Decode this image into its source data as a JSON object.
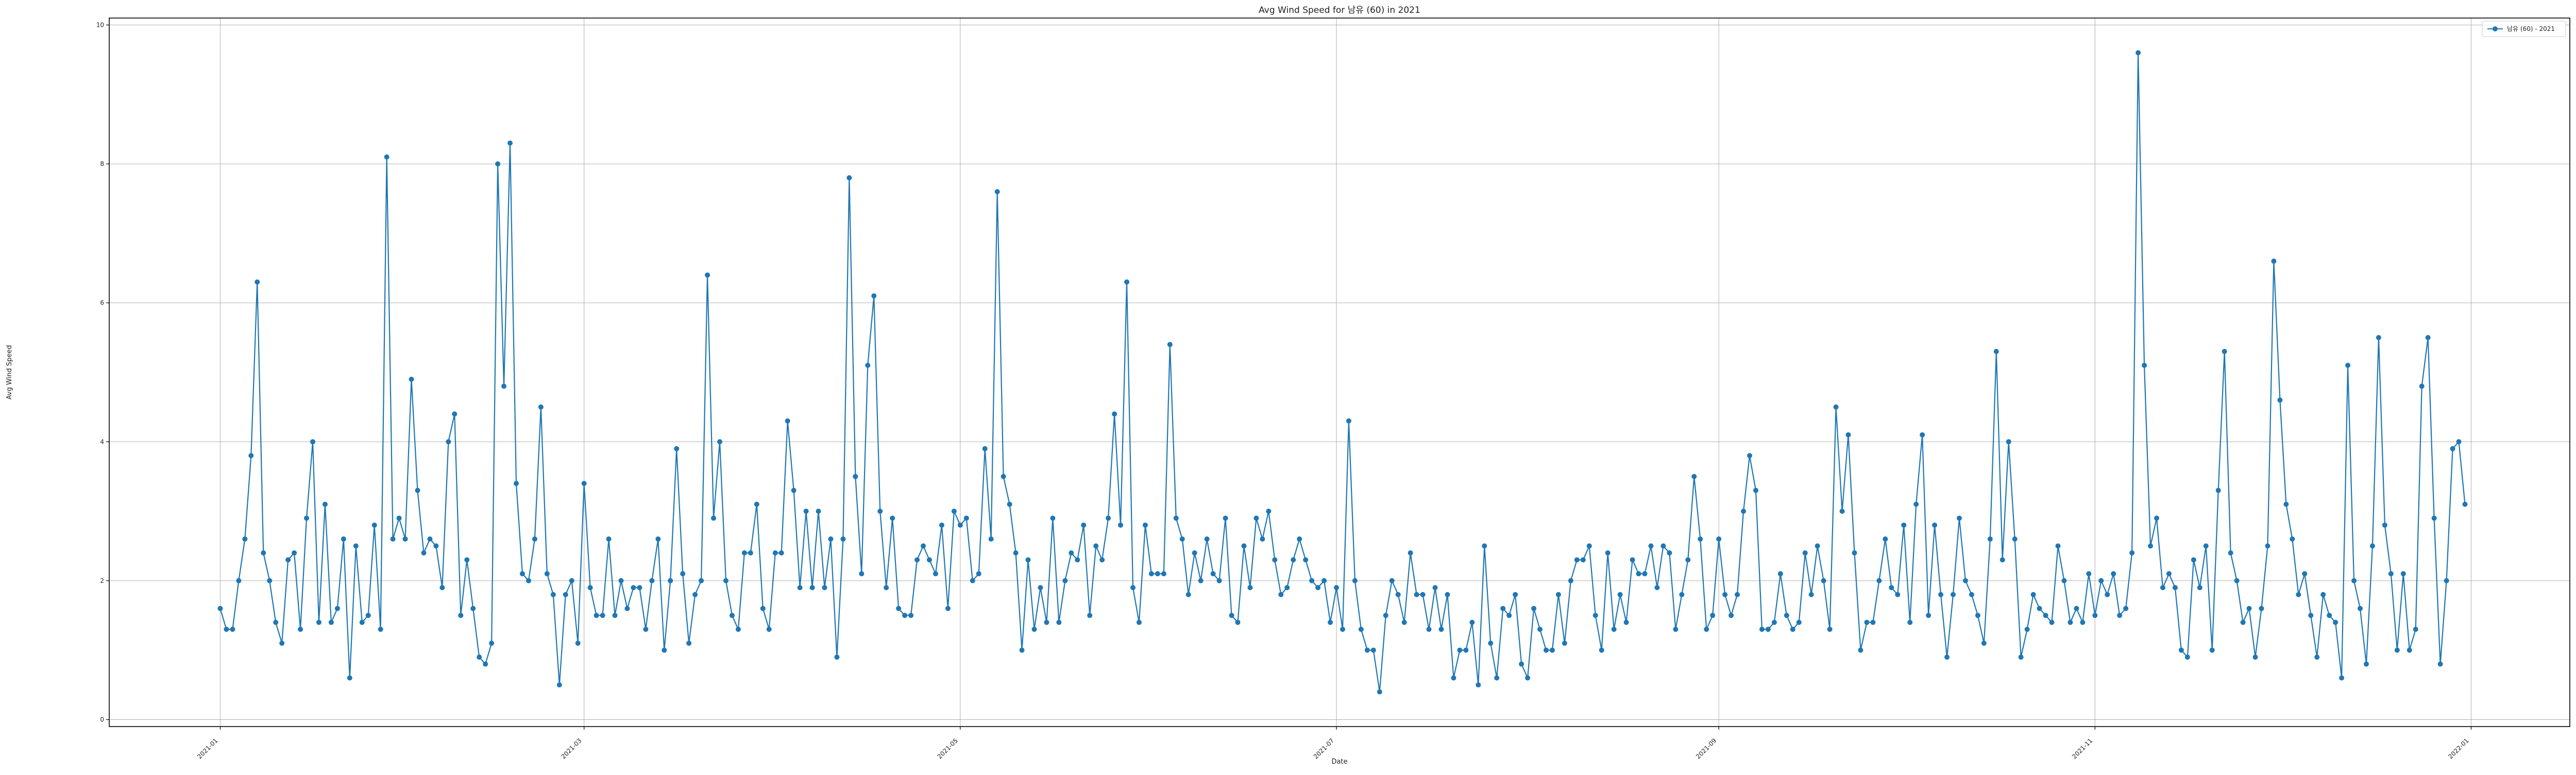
{
  "chart_data": {
    "type": "line",
    "title": "Avg Wind Speed for 남유 (60) in 2021",
    "xlabel": "Date",
    "ylabel": "Avg Wind Speed",
    "x_start": "2021-01-01",
    "x_end": "2021-12-31",
    "xlim": [
      "2020-12-14",
      "2022-01-17"
    ],
    "ylim": [
      -0.1,
      10.1
    ],
    "grid": true,
    "legend_position": "top-right",
    "x_ticks": [
      "2021-01",
      "2021-03",
      "2021-05",
      "2021-07",
      "2021-09",
      "2021-11",
      "2022-01"
    ],
    "y_ticks": [
      0,
      2,
      4,
      6,
      8,
      10
    ],
    "colors": {
      "series": "#1f77b4",
      "grid": "#b0b0b0",
      "axis": "#000000"
    },
    "series": [
      {
        "name": "남유 (60) - 2021",
        "marker": "circle",
        "values": [
          1.6,
          1.3,
          1.3,
          2.0,
          2.6,
          3.8,
          6.3,
          2.4,
          2.0,
          1.4,
          1.1,
          2.3,
          2.4,
          1.3,
          2.9,
          4.0,
          1.4,
          3.1,
          1.4,
          1.6,
          2.6,
          0.6,
          2.5,
          1.4,
          1.5,
          2.8,
          1.3,
          8.1,
          2.6,
          2.9,
          2.6,
          4.9,
          3.3,
          2.4,
          2.6,
          2.5,
          1.9,
          4.0,
          4.4,
          1.5,
          2.3,
          1.6,
          0.9,
          0.8,
          1.1,
          8.0,
          4.8,
          8.3,
          3.4,
          2.1,
          2.0,
          2.6,
          4.5,
          2.1,
          1.8,
          0.5,
          1.8,
          2.0,
          1.1,
          3.4,
          1.9,
          1.5,
          1.5,
          2.6,
          1.5,
          2.0,
          1.6,
          1.9,
          1.9,
          1.3,
          2.0,
          2.6,
          1.0,
          2.0,
          3.9,
          2.1,
          1.1,
          1.8,
          2.0,
          6.4,
          2.9,
          4.0,
          2.0,
          1.5,
          1.3,
          2.4,
          2.4,
          3.1,
          1.6,
          1.3,
          2.4,
          2.4,
          4.3,
          3.3,
          1.9,
          3.0,
          1.9,
          3.0,
          1.9,
          2.6,
          0.9,
          2.6,
          7.8,
          3.5,
          2.1,
          5.1,
          6.1,
          3.0,
          1.9,
          2.9,
          1.6,
          1.5,
          1.5,
          2.3,
          2.5,
          2.3,
          2.1,
          2.8,
          1.6,
          3.0,
          2.8,
          2.9,
          2.0,
          2.1,
          3.9,
          2.6,
          7.6,
          3.5,
          3.1,
          2.4,
          1.0,
          2.3,
          1.3,
          1.9,
          1.4,
          2.9,
          1.4,
          2.0,
          2.4,
          2.3,
          2.8,
          1.5,
          2.5,
          2.3,
          2.9,
          4.4,
          2.8,
          6.3,
          1.9,
          1.4,
          2.8,
          2.1,
          2.1,
          2.1,
          5.4,
          2.9,
          2.6,
          1.8,
          2.4,
          2.0,
          2.6,
          2.1,
          2.0,
          2.9,
          1.5,
          1.4,
          2.5,
          1.9,
          2.9,
          2.6,
          3.0,
          2.3,
          1.8,
          1.9,
          2.3,
          2.6,
          2.3,
          2.0,
          1.9,
          2.0,
          1.4,
          1.9,
          1.3,
          4.3,
          2.0,
          1.3,
          1.0,
          1.0,
          0.4,
          1.5,
          2.0,
          1.8,
          1.4,
          2.4,
          1.8,
          1.8,
          1.3,
          1.9,
          1.3,
          1.8,
          0.6,
          1.0,
          1.0,
          1.4,
          0.5,
          2.5,
          1.1,
          0.6,
          1.6,
          1.5,
          1.8,
          0.8,
          0.6,
          1.6,
          1.3,
          1.0,
          1.0,
          1.8,
          1.1,
          2.0,
          2.3,
          2.3,
          2.5,
          1.5,
          1.0,
          2.4,
          1.3,
          1.8,
          1.4,
          2.3,
          2.1,
          2.1,
          2.5,
          1.9,
          2.5,
          2.4,
          1.3,
          1.8,
          2.3,
          3.5,
          2.6,
          1.3,
          1.5,
          2.6,
          1.8,
          1.5,
          1.8,
          3.0,
          3.8,
          3.3,
          1.3,
          1.3,
          1.4,
          2.1,
          1.5,
          1.3,
          1.4,
          2.4,
          1.8,
          2.5,
          2.0,
          1.3,
          4.5,
          3.0,
          4.1,
          2.4,
          1.0,
          1.4,
          1.4,
          2.0,
          2.6,
          1.9,
          1.8,
          2.8,
          1.4,
          3.1,
          4.1,
          1.5,
          2.8,
          1.8,
          0.9,
          1.8,
          2.9,
          2.0,
          1.8,
          1.5,
          1.1,
          2.6,
          5.3,
          2.3,
          4.0,
          2.6,
          0.9,
          1.3,
          1.8,
          1.6,
          1.5,
          1.4,
          2.5,
          2.0,
          1.4,
          1.6,
          1.4,
          2.1,
          1.5,
          2.0,
          1.8,
          2.1,
          1.5,
          1.6,
          2.4,
          9.6,
          5.1,
          2.5,
          2.9,
          1.9,
          2.1,
          1.9,
          1.0,
          0.9,
          2.3,
          1.9,
          2.5,
          1.0,
          3.3,
          5.3,
          2.4,
          2.0,
          1.4,
          1.6,
          0.9,
          1.6,
          2.5,
          6.6,
          4.6,
          3.1,
          2.6,
          1.8,
          2.1,
          1.5,
          0.9,
          1.8,
          1.5,
          1.4,
          0.6,
          5.1,
          2.0,
          1.6,
          0.8,
          2.5,
          5.5,
          2.8,
          2.1,
          1.0,
          2.1,
          1.0,
          1.3,
          4.8,
          5.5,
          2.9,
          0.8,
          2.0,
          3.9,
          4.0,
          3.1
        ]
      }
    ]
  }
}
